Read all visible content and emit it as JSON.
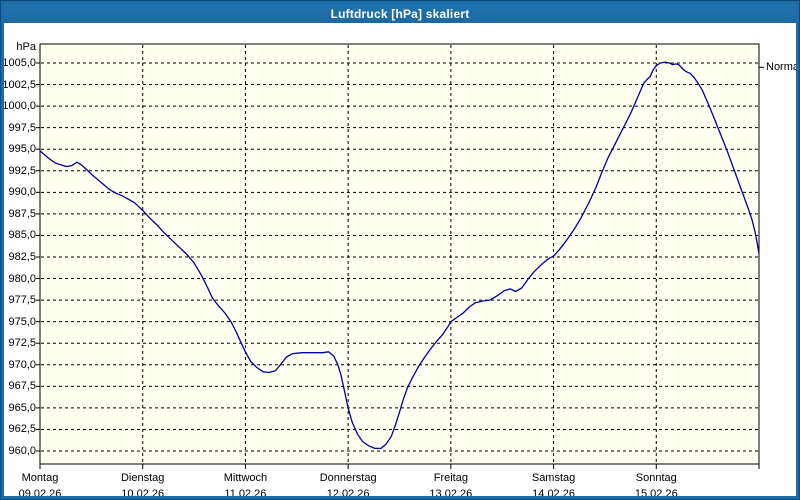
{
  "window": {
    "title": "Luftdruck [hPa] skaliert"
  },
  "colors": {
    "titlebar": "#1f6ba5",
    "frame": "#1f6ba5",
    "curve": "#0000a0",
    "plot_bg": "#fffff2",
    "grid": "#000000",
    "text": "#000000"
  },
  "chart_data": {
    "type": "line",
    "title": "Luftdruck [hPa] skaliert",
    "grid": "dashed",
    "legend_position": "none",
    "y_axis": {
      "unit_label": "hPa",
      "min": 960.0,
      "max": 1005.0,
      "step": 2.5,
      "tick_labels": [
        "1005,0",
        "1002,5",
        "1000,0",
        "997,5",
        "995,0",
        "992,5",
        "990,0",
        "987,5",
        "985,0",
        "982,5",
        "980,0",
        "977,5",
        "975,0",
        "972,5",
        "970,0",
        "967,5",
        "965,0",
        "962,5",
        "960,0"
      ]
    },
    "x_axis": {
      "days": [
        {
          "name": "Montag",
          "date": "09.02.26"
        },
        {
          "name": "Dienstag",
          "date": "10.02.26"
        },
        {
          "name": "Mittwoch",
          "date": "11.02.26"
        },
        {
          "name": "Donnerstag",
          "date": "12.02.26"
        },
        {
          "name": "Freitag",
          "date": "13.02.26"
        },
        {
          "name": "Samstag",
          "date": "14.02.26"
        },
        {
          "name": "Sonntag",
          "date": "15.02.26"
        }
      ]
    },
    "annotations": [
      {
        "label": "Normal",
        "value": 1004.5
      }
    ],
    "series": [
      {
        "name": "Luftdruck",
        "unit": "hPa",
        "points_day_hpa": [
          [
            0.0,
            994.8
          ],
          [
            0.05,
            994.3
          ],
          [
            0.1,
            993.8
          ],
          [
            0.15,
            993.4
          ],
          [
            0.2,
            993.2
          ],
          [
            0.26,
            993.0
          ],
          [
            0.31,
            993.1
          ],
          [
            0.36,
            993.5
          ],
          [
            0.4,
            993.2
          ],
          [
            0.45,
            992.7
          ],
          [
            0.5,
            992.1
          ],
          [
            0.56,
            991.5
          ],
          [
            0.62,
            990.9
          ],
          [
            0.68,
            990.3
          ],
          [
            0.74,
            989.9
          ],
          [
            0.8,
            989.6
          ],
          [
            0.86,
            989.2
          ],
          [
            0.92,
            988.8
          ],
          [
            1.0,
            987.9
          ],
          [
            1.07,
            987.0
          ],
          [
            1.14,
            986.2
          ],
          [
            1.21,
            985.3
          ],
          [
            1.28,
            984.5
          ],
          [
            1.35,
            983.7
          ],
          [
            1.43,
            982.8
          ],
          [
            1.5,
            981.8
          ],
          [
            1.57,
            980.4
          ],
          [
            1.63,
            979.0
          ],
          [
            1.68,
            977.7
          ],
          [
            1.74,
            976.8
          ],
          [
            1.8,
            976.0
          ],
          [
            1.86,
            975.0
          ],
          [
            1.91,
            973.8
          ],
          [
            1.96,
            972.5
          ],
          [
            2.0,
            971.5
          ],
          [
            2.05,
            970.4
          ],
          [
            2.11,
            969.7
          ],
          [
            2.17,
            969.2
          ],
          [
            2.23,
            969.1
          ],
          [
            2.29,
            969.3
          ],
          [
            2.34,
            970.0
          ],
          [
            2.4,
            970.9
          ],
          [
            2.46,
            971.3
          ],
          [
            2.55,
            971.4
          ],
          [
            2.65,
            971.4
          ],
          [
            2.75,
            971.4
          ],
          [
            2.81,
            971.5
          ],
          [
            2.86,
            971.0
          ],
          [
            2.9,
            970.0
          ],
          [
            2.93,
            968.8
          ],
          [
            2.96,
            967.2
          ],
          [
            3.0,
            965.0
          ],
          [
            3.04,
            963.3
          ],
          [
            3.09,
            962.0
          ],
          [
            3.14,
            961.1
          ],
          [
            3.2,
            960.6
          ],
          [
            3.26,
            960.3
          ],
          [
            3.32,
            960.3
          ],
          [
            3.37,
            960.8
          ],
          [
            3.42,
            961.7
          ],
          [
            3.46,
            963.0
          ],
          [
            3.5,
            964.5
          ],
          [
            3.54,
            966.1
          ],
          [
            3.58,
            967.4
          ],
          [
            3.63,
            968.6
          ],
          [
            3.68,
            969.7
          ],
          [
            3.74,
            970.8
          ],
          [
            3.8,
            971.8
          ],
          [
            3.86,
            972.7
          ],
          [
            3.92,
            973.5
          ],
          [
            3.97,
            974.4
          ],
          [
            4.0,
            975.0
          ],
          [
            4.06,
            975.5
          ],
          [
            4.12,
            976.0
          ],
          [
            4.18,
            976.7
          ],
          [
            4.24,
            977.2
          ],
          [
            4.31,
            977.4
          ],
          [
            4.38,
            977.5
          ],
          [
            4.45,
            978.0
          ],
          [
            4.52,
            978.6
          ],
          [
            4.58,
            978.8
          ],
          [
            4.63,
            978.5
          ],
          [
            4.69,
            978.9
          ],
          [
            4.75,
            979.9
          ],
          [
            4.81,
            980.8
          ],
          [
            4.88,
            981.6
          ],
          [
            4.95,
            982.3
          ],
          [
            5.0,
            982.6
          ],
          [
            5.06,
            983.4
          ],
          [
            5.13,
            984.5
          ],
          [
            5.2,
            985.7
          ],
          [
            5.27,
            987.1
          ],
          [
            5.34,
            988.7
          ],
          [
            5.41,
            990.5
          ],
          [
            5.47,
            992.3
          ],
          [
            5.53,
            994.0
          ],
          [
            5.59,
            995.4
          ],
          [
            5.65,
            996.8
          ],
          [
            5.71,
            998.2
          ],
          [
            5.76,
            999.4
          ],
          [
            5.81,
            1000.8
          ],
          [
            5.85,
            1001.9
          ],
          [
            5.88,
            1002.7
          ],
          [
            5.91,
            1003.1
          ],
          [
            5.94,
            1003.4
          ],
          [
            5.97,
            1004.2
          ],
          [
            6.0,
            1004.7
          ],
          [
            6.04,
            1005.0
          ],
          [
            6.09,
            1005.1
          ],
          [
            6.13,
            1005.0
          ],
          [
            6.16,
            1004.8
          ],
          [
            6.19,
            1004.9
          ],
          [
            6.22,
            1004.8
          ],
          [
            6.25,
            1004.4
          ],
          [
            6.29,
            1004.0
          ],
          [
            6.33,
            1003.8
          ],
          [
            6.37,
            1003.3
          ],
          [
            6.41,
            1002.6
          ],
          [
            6.45,
            1001.8
          ],
          [
            6.49,
            1000.7
          ],
          [
            6.53,
            999.6
          ],
          [
            6.57,
            998.4
          ],
          [
            6.61,
            997.2
          ],
          [
            6.65,
            996.0
          ],
          [
            6.69,
            994.8
          ],
          [
            6.73,
            993.5
          ],
          [
            6.77,
            992.2
          ],
          [
            6.81,
            990.9
          ],
          [
            6.85,
            989.6
          ],
          [
            6.89,
            988.3
          ],
          [
            6.93,
            986.9
          ],
          [
            6.96,
            985.5
          ],
          [
            6.98,
            984.3
          ],
          [
            7.0,
            982.9
          ]
        ]
      }
    ]
  }
}
